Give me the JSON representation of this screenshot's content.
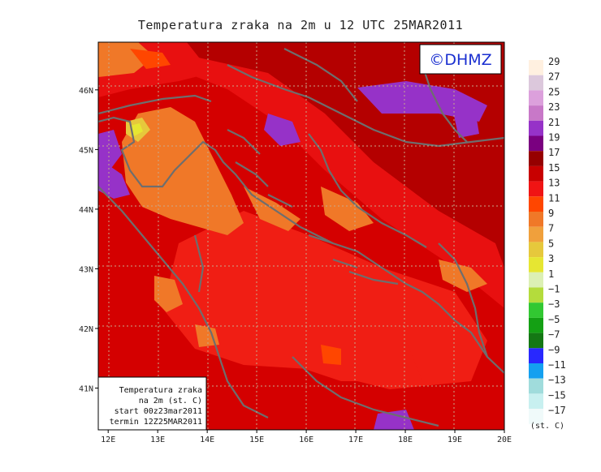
{
  "title": "Temperatura zraka na 2m u 12 UTC 25MAR2011",
  "logo": "©DHMZ",
  "info_box": [
    "Temperatura zraka",
    "na 2m (st. C)",
    "start 00z23mar2011",
    "termin 12Z25MAR2011"
  ],
  "map": {
    "lon_range": [
      11.8,
      20.0
    ],
    "lat_range": [
      40.3,
      46.8
    ],
    "lon_ticks": [
      "12E",
      "13E",
      "14E",
      "15E",
      "16E",
      "17E",
      "18E",
      "19E",
      "20E"
    ],
    "lat_ticks": [
      "41N",
      "42N",
      "43N",
      "44N",
      "45N",
      "46N"
    ],
    "grid": true
  },
  "legend": {
    "unit": "(st. C)",
    "labels": [
      "29",
      "27",
      "25",
      "23",
      "21",
      "19",
      "17",
      "15",
      "13",
      "11",
      "9",
      "7",
      "5",
      "3",
      "1",
      "−1",
      "−3",
      "−5",
      "−7",
      "−9",
      "−11",
      "−13",
      "−15",
      "−17"
    ],
    "colors": [
      "#fff0e0",
      "#dcc8dc",
      "#dca0dc",
      "#c878c8",
      "#9632c8",
      "#7a0080",
      "#960000",
      "#c80000",
      "#f01414",
      "#ff4600",
      "#f07828",
      "#f0a03c",
      "#e6c83c",
      "#e6e632",
      "#dcf0b4",
      "#b4dc3c",
      "#32c832",
      "#14a014",
      "#147814",
      "#2828ff",
      "#14a0f0",
      "#a0dcdc",
      "#c8f0f0",
      "#f0fafa"
    ]
  }
}
